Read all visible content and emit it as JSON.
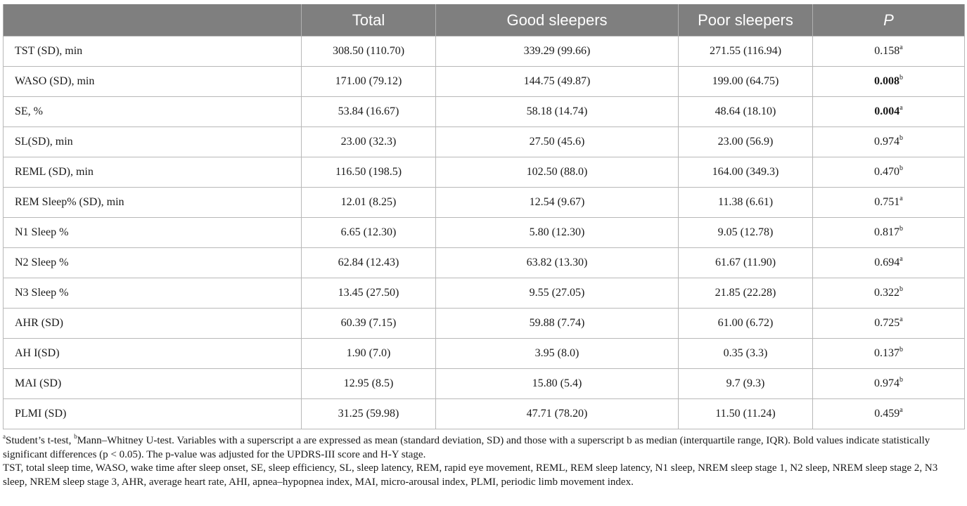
{
  "table": {
    "headers": [
      "",
      "Total",
      "Good sleepers",
      "Poor sleepers",
      "P"
    ],
    "rows": [
      {
        "label": "TST (SD), min",
        "total": "308.50 (110.70)",
        "good": "339.29 (99.66)",
        "poor": "271.55 (116.94)",
        "p": "0.158",
        "sup": "a",
        "bold": false
      },
      {
        "label": "WASO (SD), min",
        "total": "171.00 (79.12)",
        "good": "144.75 (49.87)",
        "poor": "199.00 (64.75)",
        "p": "0.008",
        "sup": "b",
        "bold": true
      },
      {
        "label": "SE, %",
        "total": "53.84 (16.67)",
        "good": "58.18 (14.74)",
        "poor": "48.64 (18.10)",
        "p": "0.004",
        "sup": "a",
        "bold": true
      },
      {
        "label": "SL(SD), min",
        "total": "23.00 (32.3)",
        "good": "27.50 (45.6)",
        "poor": "23.00 (56.9)",
        "p": "0.974",
        "sup": "b",
        "bold": false
      },
      {
        "label": "REML (SD), min",
        "total": "116.50 (198.5)",
        "good": "102.50 (88.0)",
        "poor": "164.00 (349.3)",
        "p": "0.470",
        "sup": "b",
        "bold": false
      },
      {
        "label": "REM Sleep% (SD), min",
        "total": "12.01 (8.25)",
        "good": "12.54 (9.67)",
        "poor": "11.38 (6.61)",
        "p": "0.751",
        "sup": "a",
        "bold": false
      },
      {
        "label": "N1 Sleep %",
        "total": "6.65 (12.30)",
        "good": "5.80 (12.30)",
        "poor": "9.05 (12.78)",
        "p": "0.817",
        "sup": "b",
        "bold": false
      },
      {
        "label": "N2 Sleep %",
        "total": "62.84 (12.43)",
        "good": "63.82 (13.30)",
        "poor": "61.67 (11.90)",
        "p": "0.694",
        "sup": "a",
        "bold": false
      },
      {
        "label": "N3 Sleep %",
        "total": "13.45 (27.50)",
        "good": "9.55 (27.05)",
        "poor": "21.85 (22.28)",
        "p": "0.322",
        "sup": "b",
        "bold": false
      },
      {
        "label": "AHR (SD)",
        "total": "60.39 (7.15)",
        "good": "59.88 (7.74)",
        "poor": "61.00 (6.72)",
        "p": "0.725",
        "sup": "a",
        "bold": false
      },
      {
        "label": "AH I(SD)",
        "total": "1.90 (7.0)",
        "good": "3.95 (8.0)",
        "poor": "0.35 (3.3)",
        "p": "0.137",
        "sup": "b",
        "bold": false
      },
      {
        "label": "MAI (SD)",
        "total": "12.95 (8.5)",
        "good": "15.80 (5.4)",
        "poor": "9.7 (9.3)",
        "p": "0.974",
        "sup": "b",
        "bold": false
      },
      {
        "label": "PLMI (SD)",
        "total": "31.25 (59.98)",
        "good": "47.71 (78.20)",
        "poor": "11.50 (11.24)",
        "p": "0.459",
        "sup": "a",
        "bold": false
      }
    ]
  },
  "footnotes": {
    "line1_sup_a": "a",
    "line1_a_text": "Student’s t-test, ",
    "line1_sup_b": "b",
    "line1_rest": "Mann–Whitney U-test. Variables with a superscript a are expressed as mean (standard deviation, SD) and those with a superscript b as median (interquartile range, IQR). Bold values indicate statistically significant differences (p < 0.05). The p-value was adjusted for the UPDRS-III score and H-Y stage.",
    "abbreviations": "TST, total sleep time, WASO, wake time after sleep onset, SE, sleep efficiency, SL, sleep latency, REM, rapid eye movement, REML, REM sleep latency, N1 sleep, NREM sleep stage 1, N2 sleep, NREM sleep stage 2, N3 sleep, NREM sleep stage 3, AHR, average heart rate, AHI, apnea–hypopnea index, MAI, micro-arousal index, PLMI, periodic limb movement index."
  }
}
